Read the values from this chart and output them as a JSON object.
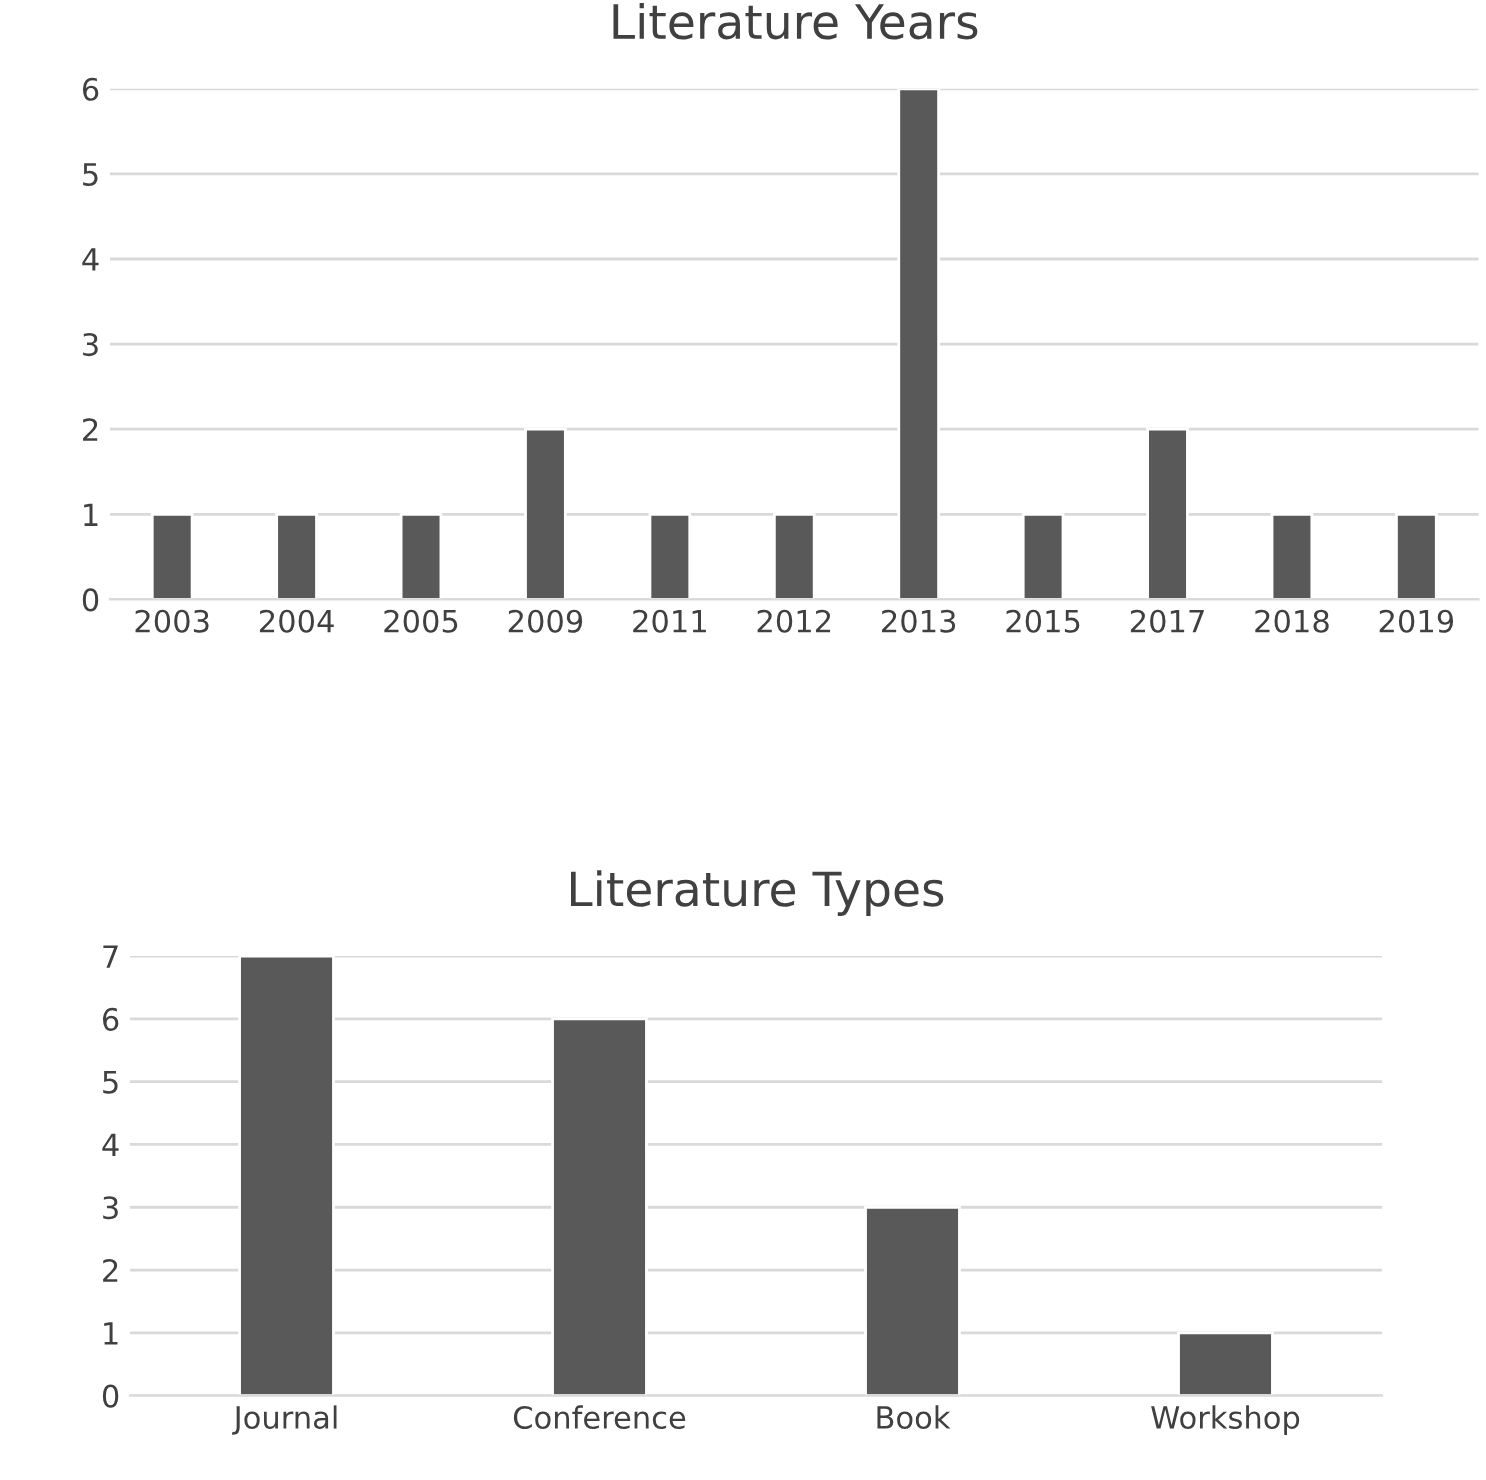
{
  "chart_data": [
    {
      "type": "bar",
      "title": "Literature Years",
      "categories": [
        "2003",
        "2004",
        "2005",
        "2009",
        "2011",
        "2012",
        "2013",
        "2015",
        "2017",
        "2018",
        "2019"
      ],
      "values": [
        1,
        1,
        1,
        2,
        1,
        1,
        6,
        1,
        2,
        1,
        1
      ],
      "color": "#595959",
      "ylim": [
        0,
        6
      ],
      "yticks": [
        0,
        1,
        2,
        3,
        4,
        5,
        6
      ],
      "grid": "y"
    },
    {
      "type": "bar",
      "title": "Literature Types",
      "categories": [
        "Journal",
        "Conference",
        "Book",
        "Workshop"
      ],
      "values": [
        7,
        6,
        3,
        1
      ],
      "color": "#595959",
      "ylim": [
        0,
        7
      ],
      "yticks": [
        0,
        1,
        2,
        3,
        4,
        5,
        6,
        7
      ],
      "grid": "y"
    }
  ]
}
